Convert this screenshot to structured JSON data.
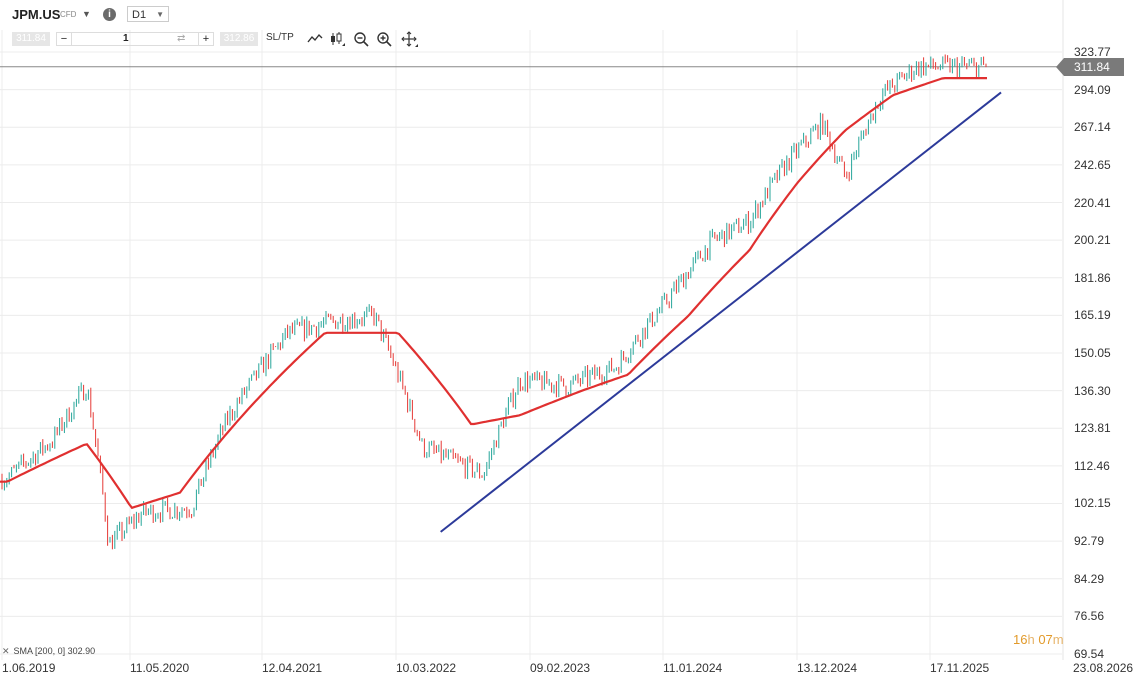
{
  "header": {
    "symbol": "JPM.US",
    "instrument_type": "CFD",
    "timeframe": "D1"
  },
  "order_bar": {
    "sell_price": "311.84",
    "quantity": "1",
    "buy_price": "312.86",
    "sltp_label": "SL/TP"
  },
  "toolbar_icons": [
    "line-chart-icon",
    "candles-icon",
    "zoom-out-icon",
    "zoom-in-icon",
    "crosshair-move-icon"
  ],
  "price_axis": [
    "323.77",
    "294.09",
    "267.14",
    "242.65",
    "220.41",
    "200.21",
    "181.86",
    "165.19",
    "150.05",
    "136.30",
    "123.81",
    "112.46",
    "102.15",
    "92.79",
    "84.29",
    "76.56",
    "69.54"
  ],
  "current_price": "311.84",
  "date_axis": [
    "1.06.2019",
    "11.05.2020",
    "12.04.2021",
    "10.03.2022",
    "09.02.2023",
    "11.01.2024",
    "13.12.2024",
    "17.11.2025",
    "23.08.2026"
  ],
  "indicator": {
    "label": "SMA [200, 0] 302.90"
  },
  "countdown": {
    "hours": "16",
    "hours_unit": "h",
    "minutes": "07",
    "minutes_unit": "m"
  },
  "colors": {
    "candle_up": "#26a69a",
    "candle_down": "#e53935",
    "sma": "#e03030",
    "trendline": "#2c3a9a"
  },
  "chart_data": {
    "type": "candlestick",
    "series": [
      {
        "name": "JPM.US",
        "kind": "close",
        "x": [
          "2019-06",
          "2019-10",
          "2020-01",
          "2020-03",
          "2020-06",
          "2020-10",
          "2021-01",
          "2021-06",
          "2021-10",
          "2022-01",
          "2022-05",
          "2022-10",
          "2023-01",
          "2023-05",
          "2023-09",
          "2024-01",
          "2024-05",
          "2024-08",
          "2024-11",
          "2025-02",
          "2025-04",
          "2025-07",
          "2025-10",
          "2025-12"
        ],
        "values": [
          109,
          120,
          138,
          92,
          100,
          101,
          127,
          158,
          163,
          165,
          118,
          110,
          140,
          138,
          145,
          170,
          200,
          210,
          243,
          270,
          235,
          290,
          312,
          311.84
        ]
      },
      {
        "name": "SMA [200, 0]",
        "kind": "sma",
        "x": [
          "2019-06",
          "2020-01",
          "2020-05",
          "2020-09",
          "2021-03",
          "2021-09",
          "2022-03",
          "2022-09",
          "2023-01",
          "2023-06",
          "2023-10",
          "2024-03",
          "2024-08",
          "2024-12",
          "2025-04",
          "2025-08",
          "2025-12"
        ],
        "values": [
          108,
          119,
          101,
          105,
          131,
          158,
          158,
          125,
          128,
          136,
          142,
          165,
          195,
          232,
          265,
          290,
          302.9
        ]
      },
      {
        "name": "trendline",
        "kind": "trendline",
        "x": [
          "2022-06-30",
          "2026-04-15"
        ],
        "values": [
          95,
          292
        ]
      }
    ],
    "ylim": [
      69.54,
      335
    ],
    "y_ticks": [
      323.77,
      294.09,
      267.14,
      242.65,
      220.41,
      200.21,
      181.86,
      165.19,
      150.05,
      136.3,
      123.81,
      112.46,
      102.15,
      92.79,
      84.29,
      76.56,
      69.54
    ],
    "x_ticks": [
      "1.06.2019",
      "11.05.2020",
      "12.04.2021",
      "10.03.2022",
      "09.02.2023",
      "11.01.2024",
      "13.12.2024",
      "17.11.2025",
      "23.08.2026"
    ],
    "grid": true,
    "scale": "log"
  }
}
